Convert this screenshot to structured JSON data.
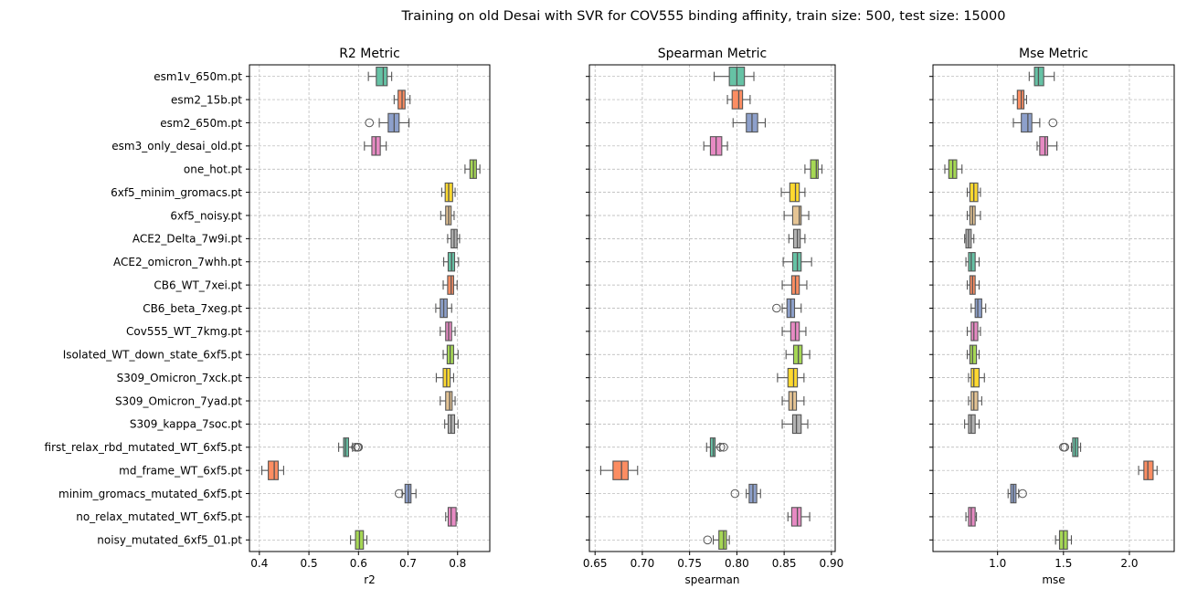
{
  "suptitle": "Training on old Desai with SVR for COV555 binding affinity, train size: 500, test size: 15000",
  "palette": [
    "#66c2a5",
    "#fc8d62",
    "#8da0cb",
    "#e78ac3",
    "#a6d854",
    "#ffd92f",
    "#e5c494",
    "#b3b3b3"
  ],
  "chart_data": [
    {
      "type": "box",
      "title": "R2 Metric",
      "xlabel": "r2",
      "xlim": [
        0.38,
        0.865
      ],
      "xticks": [
        0.4,
        0.5,
        0.6,
        0.7,
        0.8
      ],
      "xtick_labels": [
        "0.4",
        "0.5",
        "0.6",
        "0.7",
        "0.8"
      ],
      "categories": [
        "esm1v_650m.pt",
        "esm2_15b.pt",
        "esm2_650m.pt",
        "esm3_only_desai_old.pt",
        "one_hot.pt",
        "6xf5_minim_gromacs.pt",
        "6xf5_noisy.pt",
        "ACE2_Delta_7w9i.pt",
        "ACE2_omicron_7whh.pt",
        "CB6_WT_7xei.pt",
        "CB6_beta_7xeg.pt",
        "Cov555_WT_7kmg.pt",
        "Isolated_WT_down_state_6xf5.pt",
        "S309_Omicron_7xck.pt",
        "S309_Omicron_7yad.pt",
        "S309_kappa_7soc.pt",
        "first_relax_rbd_mutated_WT_6xf5.pt",
        "md_frame_WT_6xf5.pt",
        "minim_gromacs_mutated_6xf5.pt",
        "no_relax_mutated_WT_6xf5.pt",
        "noisy_mutated_6xf5_01.pt"
      ],
      "boxes": [
        {
          "min": 0.62,
          "q1": 0.636,
          "median": 0.65,
          "q3": 0.658,
          "max": 0.667,
          "outliers": []
        },
        {
          "min": 0.672,
          "q1": 0.68,
          "median": 0.688,
          "q3": 0.694,
          "max": 0.704,
          "outliers": []
        },
        {
          "min": 0.642,
          "q1": 0.66,
          "median": 0.672,
          "q3": 0.682,
          "max": 0.702,
          "outliers": [
            0.622
          ]
        },
        {
          "min": 0.612,
          "q1": 0.627,
          "median": 0.635,
          "q3": 0.644,
          "max": 0.656,
          "outliers": []
        },
        {
          "min": 0.815,
          "q1": 0.825,
          "median": 0.832,
          "q3": 0.838,
          "max": 0.845,
          "outliers": []
        },
        {
          "min": 0.768,
          "q1": 0.775,
          "median": 0.782,
          "q3": 0.79,
          "max": 0.795,
          "outliers": []
        },
        {
          "min": 0.766,
          "q1": 0.776,
          "median": 0.782,
          "q3": 0.787,
          "max": 0.793,
          "outliers": []
        },
        {
          "min": 0.78,
          "q1": 0.787,
          "median": 0.793,
          "q3": 0.799,
          "max": 0.804,
          "outliers": []
        },
        {
          "min": 0.772,
          "q1": 0.781,
          "median": 0.788,
          "q3": 0.794,
          "max": 0.802,
          "outliers": []
        },
        {
          "min": 0.771,
          "q1": 0.78,
          "median": 0.787,
          "q3": 0.792,
          "max": 0.799,
          "outliers": []
        },
        {
          "min": 0.756,
          "q1": 0.765,
          "median": 0.772,
          "q3": 0.779,
          "max": 0.788,
          "outliers": []
        },
        {
          "min": 0.765,
          "q1": 0.776,
          "median": 0.782,
          "q3": 0.788,
          "max": 0.795,
          "outliers": []
        },
        {
          "min": 0.771,
          "q1": 0.779,
          "median": 0.785,
          "q3": 0.792,
          "max": 0.801,
          "outliers": []
        },
        {
          "min": 0.757,
          "q1": 0.771,
          "median": 0.778,
          "q3": 0.785,
          "max": 0.792,
          "outliers": []
        },
        {
          "min": 0.765,
          "q1": 0.776,
          "median": 0.784,
          "q3": 0.789,
          "max": 0.795,
          "outliers": []
        },
        {
          "min": 0.774,
          "q1": 0.781,
          "median": 0.787,
          "q3": 0.794,
          "max": 0.801,
          "outliers": []
        },
        {
          "min": 0.56,
          "q1": 0.57,
          "median": 0.574,
          "q3": 0.58,
          "max": 0.588,
          "outliers": [
            0.594,
            0.598,
            0.6
          ]
        },
        {
          "min": 0.405,
          "q1": 0.418,
          "median": 0.43,
          "q3": 0.438,
          "max": 0.449,
          "outliers": []
        },
        {
          "min": 0.688,
          "q1": 0.694,
          "median": 0.701,
          "q3": 0.706,
          "max": 0.716,
          "outliers": [
            0.682
          ]
        },
        {
          "min": 0.776,
          "q1": 0.781,
          "median": 0.787,
          "q3": 0.797,
          "max": 0.799,
          "outliers": []
        },
        {
          "min": 0.584,
          "q1": 0.594,
          "median": 0.602,
          "q3": 0.61,
          "max": 0.617,
          "outliers": []
        }
      ]
    },
    {
      "type": "box",
      "title": "Spearman Metric",
      "xlabel": "spearman",
      "xlim": [
        0.644,
        0.904
      ],
      "xticks": [
        0.65,
        0.7,
        0.75,
        0.8,
        0.85,
        0.9
      ],
      "xtick_labels": [
        "0.65",
        "0.70",
        "0.75",
        "0.80",
        "0.85",
        "0.90"
      ],
      "boxes": [
        {
          "min": 0.776,
          "q1": 0.792,
          "median": 0.8,
          "q3": 0.808,
          "max": 0.818,
          "outliers": []
        },
        {
          "min": 0.79,
          "q1": 0.795,
          "median": 0.802,
          "q3": 0.806,
          "max": 0.814,
          "outliers": []
        },
        {
          "min": 0.796,
          "q1": 0.81,
          "median": 0.816,
          "q3": 0.822,
          "max": 0.83,
          "outliers": []
        },
        {
          "min": 0.765,
          "q1": 0.772,
          "median": 0.778,
          "q3": 0.784,
          "max": 0.79,
          "outliers": []
        },
        {
          "min": 0.872,
          "q1": 0.878,
          "median": 0.884,
          "q3": 0.886,
          "max": 0.89,
          "outliers": []
        },
        {
          "min": 0.847,
          "q1": 0.856,
          "median": 0.862,
          "q3": 0.866,
          "max": 0.872,
          "outliers": []
        },
        {
          "min": 0.85,
          "q1": 0.859,
          "median": 0.866,
          "q3": 0.868,
          "max": 0.876,
          "outliers": []
        },
        {
          "min": 0.855,
          "q1": 0.86,
          "median": 0.864,
          "q3": 0.867,
          "max": 0.872,
          "outliers": []
        },
        {
          "min": 0.849,
          "q1": 0.859,
          "median": 0.864,
          "q3": 0.868,
          "max": 0.879,
          "outliers": []
        },
        {
          "min": 0.848,
          "q1": 0.858,
          "median": 0.862,
          "q3": 0.866,
          "max": 0.874,
          "outliers": []
        },
        {
          "min": 0.848,
          "q1": 0.853,
          "median": 0.857,
          "q3": 0.861,
          "max": 0.868,
          "outliers": [
            0.842
          ]
        },
        {
          "min": 0.848,
          "q1": 0.857,
          "median": 0.862,
          "q3": 0.866,
          "max": 0.873,
          "outliers": []
        },
        {
          "min": 0.852,
          "q1": 0.86,
          "median": 0.865,
          "q3": 0.869,
          "max": 0.877,
          "outliers": []
        },
        {
          "min": 0.843,
          "q1": 0.854,
          "median": 0.86,
          "q3": 0.864,
          "max": 0.871,
          "outliers": []
        },
        {
          "min": 0.848,
          "q1": 0.855,
          "median": 0.859,
          "q3": 0.863,
          "max": 0.871,
          "outliers": []
        },
        {
          "min": 0.848,
          "q1": 0.859,
          "median": 0.863,
          "q3": 0.868,
          "max": 0.875,
          "outliers": []
        },
        {
          "min": 0.768,
          "q1": 0.772,
          "median": 0.775,
          "q3": 0.777,
          "max": 0.782,
          "outliers": [
            0.783,
            0.786
          ]
        },
        {
          "min": 0.656,
          "q1": 0.669,
          "median": 0.678,
          "q3": 0.685,
          "max": 0.695,
          "outliers": []
        },
        {
          "min": 0.81,
          "q1": 0.813,
          "median": 0.817,
          "q3": 0.821,
          "max": 0.825,
          "outliers": [
            0.798
          ]
        },
        {
          "min": 0.854,
          "q1": 0.858,
          "median": 0.864,
          "q3": 0.868,
          "max": 0.877,
          "outliers": []
        },
        {
          "min": 0.775,
          "q1": 0.781,
          "median": 0.786,
          "q3": 0.789,
          "max": 0.792,
          "outliers": [
            0.769
          ]
        }
      ]
    },
    {
      "type": "box",
      "title": "Mse Metric",
      "xlabel": "mse",
      "xlim": [
        0.51,
        2.34
      ],
      "xticks": [
        1.0,
        1.5,
        2.0
      ],
      "xtick_labels": [
        "1.0",
        "1.5",
        "2.0"
      ],
      "boxes": [
        {
          "min": 1.24,
          "q1": 1.28,
          "median": 1.31,
          "q3": 1.35,
          "max": 1.43,
          "outliers": []
        },
        {
          "min": 1.12,
          "q1": 1.15,
          "median": 1.18,
          "q3": 1.2,
          "max": 1.22,
          "outliers": []
        },
        {
          "min": 1.12,
          "q1": 1.18,
          "median": 1.23,
          "q3": 1.26,
          "max": 1.32,
          "outliers": [
            1.42
          ]
        },
        {
          "min": 1.3,
          "q1": 1.32,
          "median": 1.36,
          "q3": 1.38,
          "max": 1.45,
          "outliers": []
        },
        {
          "min": 0.6,
          "q1": 0.63,
          "median": 0.66,
          "q3": 0.69,
          "max": 0.73,
          "outliers": []
        },
        {
          "min": 0.77,
          "q1": 0.79,
          "median": 0.82,
          "q3": 0.85,
          "max": 0.87,
          "outliers": []
        },
        {
          "min": 0.77,
          "q1": 0.79,
          "median": 0.81,
          "q3": 0.83,
          "max": 0.87,
          "outliers": []
        },
        {
          "min": 0.75,
          "q1": 0.76,
          "median": 0.78,
          "q3": 0.8,
          "max": 0.82,
          "outliers": []
        },
        {
          "min": 0.76,
          "q1": 0.78,
          "median": 0.8,
          "q3": 0.83,
          "max": 0.86,
          "outliers": []
        },
        {
          "min": 0.77,
          "q1": 0.79,
          "median": 0.81,
          "q3": 0.83,
          "max": 0.86,
          "outliers": []
        },
        {
          "min": 0.8,
          "q1": 0.83,
          "median": 0.85,
          "q3": 0.88,
          "max": 0.91,
          "outliers": []
        },
        {
          "min": 0.77,
          "q1": 0.8,
          "median": 0.82,
          "q3": 0.85,
          "max": 0.87,
          "outliers": []
        },
        {
          "min": 0.77,
          "q1": 0.79,
          "median": 0.81,
          "q3": 0.84,
          "max": 0.86,
          "outliers": []
        },
        {
          "min": 0.78,
          "q1": 0.8,
          "median": 0.82,
          "q3": 0.86,
          "max": 0.9,
          "outliers": []
        },
        {
          "min": 0.78,
          "q1": 0.8,
          "median": 0.82,
          "q3": 0.85,
          "max": 0.88,
          "outliers": []
        },
        {
          "min": 0.75,
          "q1": 0.78,
          "median": 0.8,
          "q3": 0.83,
          "max": 0.86,
          "outliers": []
        },
        {
          "min": 1.56,
          "q1": 1.57,
          "median": 1.59,
          "q3": 1.61,
          "max": 1.63,
          "outliers": [
            1.5,
            1.51
          ]
        },
        {
          "min": 2.07,
          "q1": 2.11,
          "median": 2.14,
          "q3": 2.18,
          "max": 2.21,
          "outliers": []
        },
        {
          "min": 1.08,
          "q1": 1.1,
          "median": 1.12,
          "q3": 1.14,
          "max": 1.16,
          "outliers": [
            1.19
          ]
        },
        {
          "min": 0.76,
          "q1": 0.78,
          "median": 0.8,
          "q3": 0.83,
          "max": 0.84,
          "outliers": []
        },
        {
          "min": 1.44,
          "q1": 1.47,
          "median": 1.5,
          "q3": 1.53,
          "max": 1.56,
          "outliers": []
        }
      ]
    }
  ]
}
